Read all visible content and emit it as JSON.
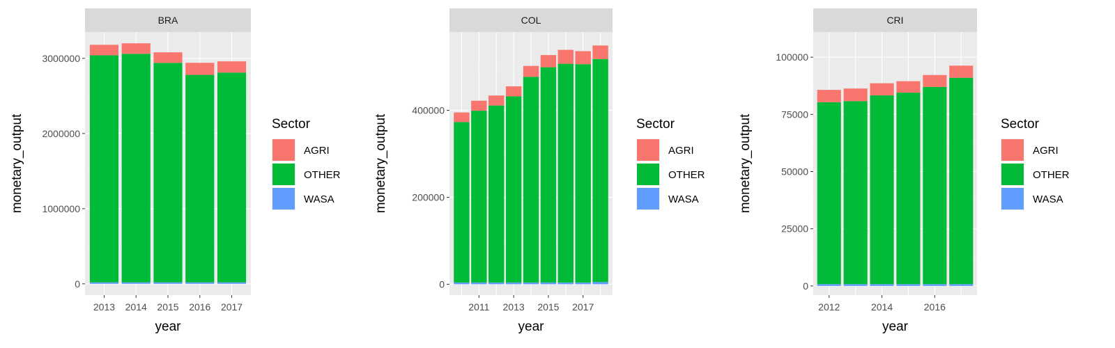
{
  "chart_data": [
    {
      "type": "bar",
      "stacked": true,
      "title": "BRA",
      "xlabel": "year",
      "ylabel": "monetary_output",
      "x": [
        2013,
        2014,
        2015,
        2016,
        2017
      ],
      "x_ticks": [
        "2013",
        "2014",
        "2015",
        "2016",
        "2017"
      ],
      "y_ticks": [
        "0",
        "1000000",
        "2000000",
        "3000000"
      ],
      "y_tick_values": [
        0,
        1000000,
        2000000,
        3000000
      ],
      "ylim": [
        -150000,
        3350000
      ],
      "xlim": [
        2012.4,
        2017.6
      ],
      "series": [
        {
          "name": "WASA",
          "values": [
            20000,
            20000,
            20000,
            20000,
            20000
          ]
        },
        {
          "name": "OTHER",
          "values": [
            3020000,
            3040000,
            2920000,
            2760000,
            2790000
          ]
        },
        {
          "name": "AGRI",
          "values": [
            140000,
            140000,
            140000,
            160000,
            150000
          ]
        }
      ],
      "legend": {
        "title": "Sector",
        "position": "right"
      },
      "grid": true
    },
    {
      "type": "bar",
      "stacked": true,
      "title": "COL",
      "xlabel": "year",
      "ylabel": "monetary_output",
      "x": [
        2010,
        2011,
        2012,
        2013,
        2014,
        2015,
        2016,
        2017,
        2018
      ],
      "x_ticks": [
        "2011",
        "2013",
        "2015",
        "2017"
      ],
      "x_tick_values": [
        2011,
        2013,
        2015,
        2017
      ],
      "y_ticks": [
        "0",
        "200000",
        "400000"
      ],
      "y_tick_values": [
        0,
        200000,
        400000
      ],
      "ylim": [
        -25000,
        580000
      ],
      "xlim": [
        2009.3,
        2018.7
      ],
      "series": [
        {
          "name": "WASA",
          "values": [
            4000,
            4000,
            4000,
            4000,
            4000,
            4000,
            4000,
            4000,
            5000
          ]
        },
        {
          "name": "OTHER",
          "values": [
            369000,
            395000,
            407000,
            428000,
            473000,
            495000,
            503000,
            502000,
            513000
          ]
        },
        {
          "name": "AGRI",
          "values": [
            22000,
            23000,
            23000,
            23000,
            25000,
            28000,
            32000,
            30000,
            31000
          ]
        }
      ],
      "legend": {
        "title": "Sector",
        "position": "right"
      },
      "grid": true
    },
    {
      "type": "bar",
      "stacked": true,
      "title": "CRI",
      "xlabel": "year",
      "ylabel": "monetary_output",
      "x": [
        2012,
        2013,
        2014,
        2015,
        2016,
        2017
      ],
      "x_ticks": [
        "2012",
        "2014",
        "2016"
      ],
      "x_tick_values": [
        2012,
        2014,
        2016
      ],
      "y_ticks": [
        "0",
        "25000",
        "50000",
        "75000",
        "100000"
      ],
      "y_tick_values": [
        0,
        25000,
        50000,
        75000,
        100000
      ],
      "ylim": [
        -4000,
        111000
      ],
      "xlim": [
        2011.4,
        2017.6
      ],
      "series": [
        {
          "name": "WASA",
          "values": [
            800,
            800,
            800,
            800,
            800,
            800
          ]
        },
        {
          "name": "OTHER",
          "values": [
            79500,
            80000,
            82500,
            83700,
            86200,
            90200
          ]
        },
        {
          "name": "AGRI",
          "values": [
            5400,
            5500,
            5300,
            5000,
            5200,
            5300
          ]
        }
      ],
      "legend": {
        "title": "Sector",
        "position": "right"
      },
      "grid": true
    }
  ],
  "legend": {
    "title": "Sector",
    "items": [
      {
        "label": "AGRI",
        "color": "#F8766D"
      },
      {
        "label": "OTHER",
        "color": "#00BA38"
      },
      {
        "label": "WASA",
        "color": "#619CFF"
      }
    ]
  },
  "colors": {
    "AGRI": "#F8766D",
    "OTHER": "#00BA38",
    "WASA": "#619CFF",
    "panel_background": "#EBEBEB",
    "strip_background": "#D9D9D9"
  }
}
